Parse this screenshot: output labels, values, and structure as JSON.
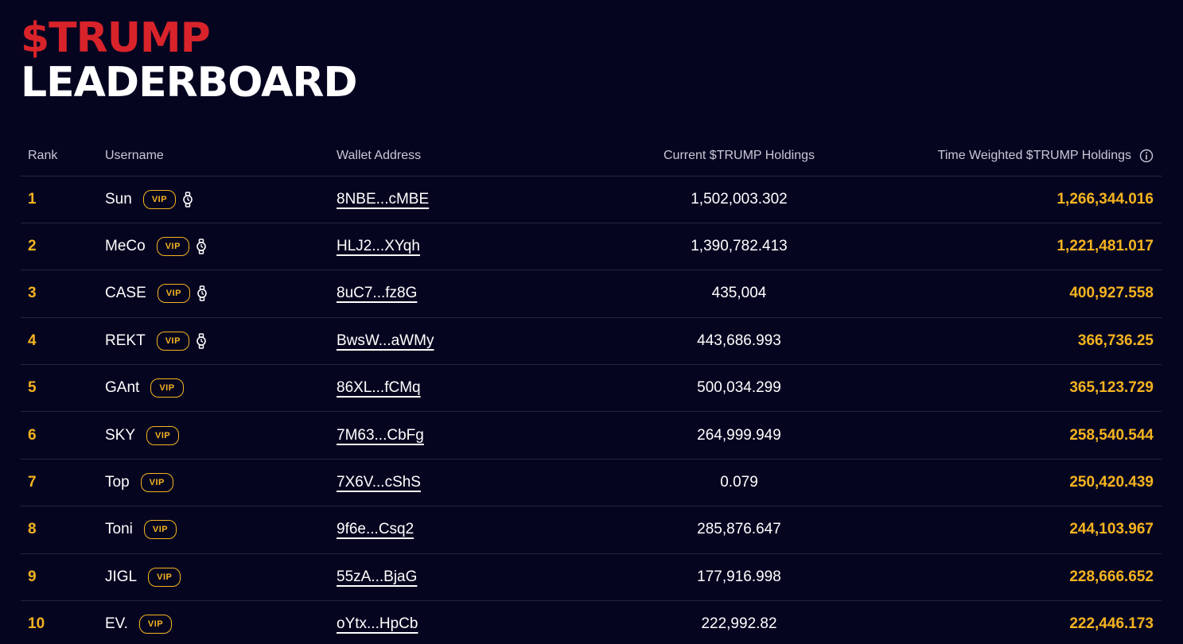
{
  "header": {
    "accent": "$TRUMP",
    "title": "LEADERBOARD"
  },
  "colors": {
    "background": "#050520",
    "accent_red": "#d8232a",
    "gold": "#f5b31f"
  },
  "table": {
    "columns": {
      "rank": "Rank",
      "username": "Username",
      "wallet": "Wallet Address",
      "current": "Current $TRUMP Holdings",
      "time_weighted": "Time Weighted $TRUMP Holdings"
    },
    "rows": [
      {
        "rank": "1",
        "username": "Sun",
        "badge": "VIP",
        "watch_icon": true,
        "wallet": "8NBE...cMBE",
        "current": "1,502,003.302",
        "time_weighted": "1,266,344.016"
      },
      {
        "rank": "2",
        "username": "MeCo",
        "badge": "VIP",
        "watch_icon": true,
        "wallet": "HLJ2...XYqh",
        "current": "1,390,782.413",
        "time_weighted": "1,221,481.017"
      },
      {
        "rank": "3",
        "username": "CASE",
        "badge": "VIP",
        "watch_icon": true,
        "wallet": "8uC7...fz8G",
        "current": "435,004",
        "time_weighted": "400,927.558"
      },
      {
        "rank": "4",
        "username": "REKT",
        "badge": "VIP",
        "watch_icon": true,
        "wallet": "BwsW...aWMy",
        "current": "443,686.993",
        "time_weighted": "366,736.25"
      },
      {
        "rank": "5",
        "username": "GAnt",
        "badge": "VIP",
        "watch_icon": false,
        "wallet": "86XL...fCMq",
        "current": "500,034.299",
        "time_weighted": "365,123.729"
      },
      {
        "rank": "6",
        "username": "SKY",
        "badge": "VIP",
        "watch_icon": false,
        "wallet": "7M63...CbFg",
        "current": "264,999.949",
        "time_weighted": "258,540.544"
      },
      {
        "rank": "7",
        "username": "Top",
        "badge": "VIP",
        "watch_icon": false,
        "wallet": "7X6V...cShS",
        "current": "0.079",
        "time_weighted": "250,420.439"
      },
      {
        "rank": "8",
        "username": "Toni",
        "badge": "VIP",
        "watch_icon": false,
        "wallet": "9f6e...Csq2",
        "current": "285,876.647",
        "time_weighted": "244,103.967"
      },
      {
        "rank": "9",
        "username": "JIGL",
        "badge": "VIP",
        "watch_icon": false,
        "wallet": "55zA...BjaG",
        "current": "177,916.998",
        "time_weighted": "228,666.652"
      },
      {
        "rank": "10",
        "username": "EV.",
        "badge": "VIP",
        "watch_icon": false,
        "wallet": "oYtx...HpCb",
        "current": "222,992.82",
        "time_weighted": "222,446.173"
      }
    ]
  }
}
